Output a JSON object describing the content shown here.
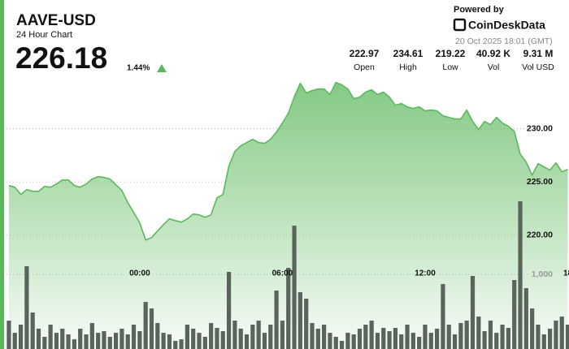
{
  "chart_data": {
    "type": "area",
    "title": "AAVE-USD",
    "subtitle": "24 Hour Chart",
    "last_price": 226.18,
    "change": "1.44%",
    "powered_by": "Powered by",
    "brand": "CoinDeskData",
    "timestamp": "20 Oct 2025 18:01 (GMT)",
    "stats": [
      {
        "value": "222.97",
        "label": "Open"
      },
      {
        "value": "234.61",
        "label": "High"
      },
      {
        "value": "219.22",
        "label": "Low"
      },
      {
        "value": "40.92 K",
        "label": "Vol"
      },
      {
        "value": "9.31 M",
        "label": "Vol USD"
      }
    ],
    "x": [
      -5.5,
      -5.25,
      -5,
      -4.75,
      -4.5,
      -4.25,
      -4,
      -3.75,
      -3.5,
      -3.25,
      -3,
      -2.75,
      -2.5,
      -2.25,
      -2,
      -1.75,
      -1.5,
      -1.25,
      -1,
      -0.75,
      -0.5,
      -0.25,
      0,
      0.25,
      0.5,
      0.75,
      1,
      1.25,
      1.5,
      1.75,
      2,
      2.25,
      2.5,
      2.75,
      3,
      3.25,
      3.5,
      3.75,
      4,
      4.25,
      4.5,
      4.75,
      5,
      5.25,
      5.5,
      5.75,
      6,
      6.25,
      6.5,
      6.75,
      7,
      7.25,
      7.5,
      7.75,
      8,
      8.25,
      8.5,
      8.75,
      9,
      9.25,
      9.5,
      9.75,
      10,
      10.25,
      10.5,
      10.75,
      11,
      11.25,
      11.5,
      11.75,
      12,
      12.25,
      12.5,
      12.75,
      13,
      13.25,
      13.5,
      13.75,
      14,
      14.25,
      14.5,
      14.75,
      15,
      15.25,
      15.5,
      15.75,
      16,
      16.25,
      16.5,
      16.75,
      17,
      17.25,
      17.5,
      17.75,
      18
    ],
    "xlim": [
      -5.6,
      18.05
    ],
    "xticks": [
      {
        "value": 0,
        "label": "00:00"
      },
      {
        "value": 6,
        "label": "06:00"
      },
      {
        "value": 12,
        "label": "12:00"
      },
      {
        "value": 18,
        "label": "18"
      }
    ],
    "ylim": [
      209.3,
      242.1
    ],
    "yticks": [
      {
        "value": 230,
        "label": "230.00"
      },
      {
        "value": 225,
        "label": "225.00"
      },
      {
        "value": 220,
        "label": "220.00"
      }
    ],
    "y2lim": [
      0,
      4674
    ],
    "y2ticks": [
      {
        "value": 1000,
        "label": "1,000"
      }
    ],
    "grid": true,
    "series": [
      {
        "color": "#5cb85c",
        "values": [
          224.66,
          224.5,
          223.82,
          224.27,
          224.12,
          224.12,
          224.58,
          224.5,
          224.81,
          225.19,
          225.19,
          224.66,
          224.5,
          224.81,
          225.27,
          225.5,
          225.42,
          225.27,
          224.73,
          224.2,
          223.05,
          222.14,
          221.15,
          219.54,
          219.77,
          220.38,
          220.99,
          221.53,
          221.37,
          221.22,
          221.53,
          221.98,
          221.91,
          221.68,
          221.91,
          223.51,
          223.82,
          226.49,
          227.86,
          228.4,
          228.7,
          229.01,
          228.7,
          228.63,
          229.01,
          229.69,
          230.53,
          231.45,
          232.98,
          234.27,
          233.36,
          233.59,
          233.74,
          233.74,
          233.21,
          234.35,
          234.12,
          233.74,
          232.82,
          232.98,
          233.44,
          233.66,
          233.21,
          233.44,
          232.98,
          232.21,
          232.37,
          232.06,
          231.91,
          232.06,
          231.68,
          231.76,
          231.68,
          231.22,
          231.07,
          230.92,
          230.92,
          231.76,
          230.69,
          229.92,
          230.69,
          230.38,
          231.07,
          230.53,
          230.23,
          229.77,
          227.63,
          226.87,
          225.65,
          226.72,
          226.41,
          226.11,
          226.79,
          225.95,
          226.18
        ]
      },
      {
        "color": "#59655a",
        "axis": "y2",
        "values": [
          380,
          217,
          326,
          1109,
          489,
          272,
          163,
          326,
          217,
          272,
          196,
          130,
          272,
          196,
          348,
          217,
          239,
          163,
          217,
          272,
          196,
          326,
          239,
          630,
          543,
          348,
          217,
          196,
          109,
          130,
          326,
          272,
          217,
          163,
          348,
          283,
          239,
          1033,
          380,
          272,
          196,
          326,
          380,
          217,
          326,
          783,
          380,
          1087,
          1652,
          761,
          674,
          348,
          272,
          326,
          217,
          163,
          109,
          217,
          196,
          272,
          326,
          380,
          217,
          283,
          239,
          283,
          196,
          326,
          217,
          163,
          326,
          217,
          272,
          870,
          326,
          196,
          348,
          380,
          978,
          435,
          239,
          380,
          217,
          326,
          283,
          924,
          1978,
          815,
          543,
          326,
          196,
          272,
          380,
          435,
          326
        ]
      }
    ]
  }
}
